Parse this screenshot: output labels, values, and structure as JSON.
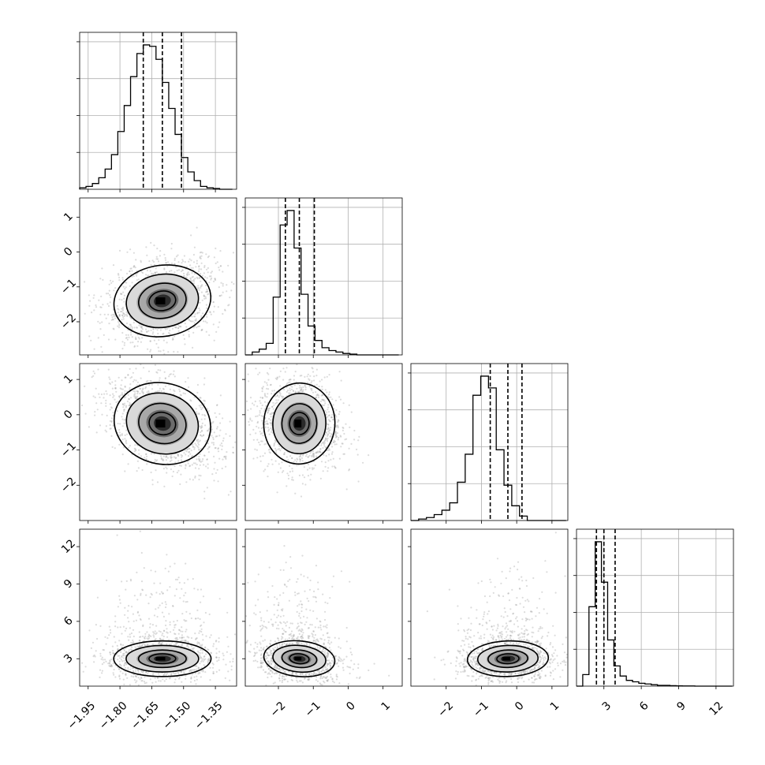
{
  "chart_data": {
    "type": "corner",
    "parameters": [
      {
        "range": [
          -1.99,
          -1.25
        ],
        "ticks": [
          "−1.95",
          "−1.80",
          "−1.65",
          "−1.50",
          "−1.35"
        ],
        "tick_values": [
          -1.95,
          -1.8,
          -1.65,
          -1.5,
          -1.35
        ],
        "mean": -1.6,
        "sd": 0.09,
        "quantiles": [
          -1.69,
          -1.6,
          -1.51
        ]
      },
      {
        "range": [
          -2.95,
          1.55
        ],
        "ticks": [
          "−2",
          "−1",
          "0",
          "1"
        ],
        "tick_values": [
          -2,
          -1,
          0,
          1
        ],
        "mean": -1.4,
        "sd": 0.4,
        "quantiles": [
          -1.8,
          -1.4,
          -0.97
        ]
      },
      {
        "range": [
          -3.0,
          1.45
        ],
        "ticks": [
          "−2",
          "−1",
          "0",
          "1"
        ],
        "tick_values": [
          -2,
          -1,
          0,
          1
        ],
        "mean": -0.25,
        "sd": 0.45,
        "quantiles": [
          -0.75,
          -0.25,
          0.15
        ]
      },
      {
        "range": [
          0.8,
          13.4
        ],
        "ticks": [
          "3",
          "6",
          "9",
          "12"
        ],
        "tick_values": [
          3,
          6,
          9,
          12
        ],
        "mean": 3.0,
        "sd": 0.7,
        "quantiles": [
          2.4,
          3.0,
          3.9
        ]
      }
    ],
    "histograms": [
      {
        "param": 0,
        "bins": [
          -1.99,
          -1.96,
          -1.93,
          -1.9,
          -1.87,
          -1.84,
          -1.81,
          -1.78,
          -1.75,
          -1.72,
          -1.69,
          -1.66,
          -1.63,
          -1.6,
          -1.57,
          -1.54,
          -1.51,
          -1.48,
          -1.45,
          -1.42,
          -1.39,
          -1.36,
          -1.33,
          -1.3,
          -1.27
        ],
        "counts": [
          0.01,
          0.02,
          0.04,
          0.08,
          0.14,
          0.24,
          0.4,
          0.58,
          0.78,
          0.94,
          1.0,
          0.99,
          0.9,
          0.74,
          0.56,
          0.38,
          0.22,
          0.12,
          0.06,
          0.02,
          0.01,
          0.005,
          0.0,
          0.0
        ]
      },
      {
        "param": 1,
        "bins": [
          -2.95,
          -2.75,
          -2.55,
          -2.35,
          -2.15,
          -1.95,
          -1.75,
          -1.55,
          -1.35,
          -1.15,
          -0.95,
          -0.75,
          -0.55,
          -0.35,
          -0.15,
          0.05,
          0.25,
          0.45,
          0.65,
          0.85,
          1.05,
          1.25,
          1.45
        ],
        "counts": [
          0.0,
          0.02,
          0.04,
          0.08,
          0.4,
          0.9,
          1.0,
          0.74,
          0.42,
          0.2,
          0.1,
          0.05,
          0.03,
          0.02,
          0.01,
          0.005,
          0.0,
          0.0,
          0.0,
          0.0,
          0.0,
          0.0
        ]
      },
      {
        "param": 2,
        "bins": [
          -3.0,
          -2.78,
          -2.56,
          -2.34,
          -2.12,
          -1.9,
          -1.68,
          -1.46,
          -1.24,
          -1.02,
          -0.8,
          -0.58,
          -0.36,
          -0.14,
          0.08,
          0.3,
          0.52,
          0.74,
          0.96,
          1.18,
          1.4
        ],
        "counts": [
          0.0,
          0.01,
          0.02,
          0.04,
          0.07,
          0.12,
          0.26,
          0.45,
          0.85,
          0.98,
          0.9,
          0.48,
          0.24,
          0.1,
          0.03,
          0.0,
          0.0,
          0.0,
          0.0,
          0.0
        ]
      },
      {
        "param": 3,
        "bins": [
          0.8,
          1.3,
          1.8,
          2.3,
          2.8,
          3.3,
          3.8,
          4.3,
          4.8,
          5.3,
          5.8,
          6.3,
          6.8,
          7.3,
          7.8,
          8.3,
          8.8,
          9.3,
          9.8,
          10.3,
          10.8,
          11.3,
          11.8,
          12.3,
          12.8,
          13.3
        ],
        "counts": [
          0.0,
          0.08,
          0.55,
          1.0,
          0.72,
          0.32,
          0.14,
          0.07,
          0.04,
          0.03,
          0.02,
          0.015,
          0.01,
          0.005,
          0.005,
          0.003,
          0.002,
          0.001,
          0.001,
          0.0,
          0.0,
          0.0,
          0.0,
          0.0,
          0.0
        ]
      }
    ],
    "pairs": [
      {
        "x": 0,
        "y": 1,
        "correlation": 0.25
      },
      {
        "x": 0,
        "y": 2,
        "correlation": -0.4
      },
      {
        "x": 1,
        "y": 2,
        "correlation": -0.1
      },
      {
        "x": 0,
        "y": 3,
        "correlation": 0.0
      },
      {
        "x": 1,
        "y": 3,
        "correlation": -0.15
      },
      {
        "x": 2,
        "y": 3,
        "correlation": 0.05
      }
    ],
    "grid": true
  }
}
